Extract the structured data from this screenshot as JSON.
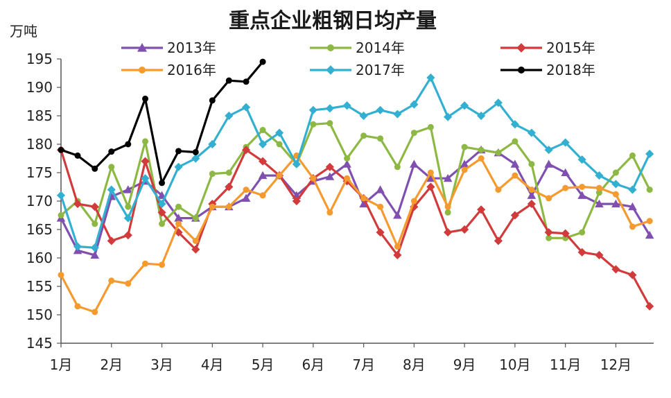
{
  "chart_data": {
    "type": "line",
    "title": "重点企业粗钢日均产量",
    "ylabel": "万吨",
    "xlabel": "",
    "ylim": [
      145,
      195
    ],
    "yticks": [
      145,
      150,
      155,
      160,
      165,
      170,
      175,
      180,
      185,
      190,
      195
    ],
    "x_range": [
      0,
      11.75
    ],
    "xticks": [
      {
        "label": "1月",
        "x": 0
      },
      {
        "label": "2月",
        "x": 1
      },
      {
        "label": "3月",
        "x": 2
      },
      {
        "label": "4月",
        "x": 3
      },
      {
        "label": "5月",
        "x": 4
      },
      {
        "label": "6月",
        "x": 5
      },
      {
        "label": "7月",
        "x": 6
      },
      {
        "label": "8月",
        "x": 7
      },
      {
        "label": "9月",
        "x": 8
      },
      {
        "label": "10月",
        "x": 9
      },
      {
        "label": "11月",
        "x": 10
      },
      {
        "label": "12月",
        "x": 11
      }
    ],
    "grid": false,
    "legend": "top",
    "series": [
      {
        "name": "2013年",
        "color": "#7f50b0",
        "marker": "triangle",
        "x": [
          0,
          0.33,
          0.67,
          1,
          1.33,
          1.67,
          2,
          2.33,
          2.67,
          3,
          3.33,
          3.67,
          4,
          4.33,
          4.67,
          5,
          5.33,
          5.67,
          6,
          6.33,
          6.67,
          7,
          7.33,
          7.67,
          8,
          8.33,
          8.67,
          9,
          9.33,
          9.67,
          10,
          10.33,
          10.67,
          11,
          11.33,
          11.67
        ],
        "values": [
          167,
          161.3,
          160.5,
          170.8,
          172,
          173.5,
          171,
          167,
          167,
          169,
          169,
          170.5,
          174.5,
          174.5,
          171,
          173.5,
          174.3,
          176.5,
          169.5,
          172,
          167.5,
          176.5,
          174,
          174,
          176.5,
          179,
          178.5,
          176.5,
          171,
          176.5,
          175,
          171,
          169.5,
          169.5,
          169,
          164
        ]
      },
      {
        "name": "2014年",
        "color": "#8db843",
        "marker": "circle",
        "x": [
          0,
          0.33,
          0.67,
          1,
          1.33,
          1.67,
          2,
          2.33,
          2.67,
          3,
          3.33,
          3.67,
          4,
          4.33,
          4.67,
          5,
          5.33,
          5.67,
          6,
          6.33,
          6.67,
          7,
          7.33,
          7.67,
          8,
          8.33,
          8.67,
          9,
          9.33,
          9.67,
          10,
          10.33,
          10.67,
          11,
          11.33,
          11.67
        ],
        "values": [
          167.5,
          170,
          166,
          176,
          169,
          180.5,
          166,
          169,
          167,
          174.8,
          175,
          179.5,
          182.5,
          180,
          176.5,
          183.5,
          183.7,
          177.5,
          181.5,
          181,
          176,
          182,
          183,
          168,
          179.5,
          179,
          178.5,
          180.5,
          176.5,
          163.5,
          163.5,
          164.5,
          171.5,
          175,
          178,
          172
        ]
      },
      {
        "name": "2015年",
        "color": "#d13b3b",
        "marker": "diamond",
        "x": [
          0,
          0.33,
          0.67,
          1,
          1.33,
          1.67,
          2,
          2.33,
          2.67,
          3,
          3.33,
          3.67,
          4,
          4.33,
          4.67,
          5,
          5.33,
          5.67,
          6,
          6.33,
          6.67,
          7,
          7.33,
          7.67,
          8,
          8.33,
          8.67,
          9,
          9.33,
          9.67,
          10,
          10.33,
          10.67,
          11,
          11.33,
          11.67
        ],
        "values": [
          179,
          169.5,
          169,
          163,
          164,
          177,
          168,
          164.5,
          161.5,
          169.5,
          172.5,
          179,
          177,
          174.5,
          170,
          174,
          176,
          173.5,
          170.5,
          164.5,
          160.5,
          169,
          172.5,
          164.5,
          165,
          168.5,
          163,
          167.5,
          169.5,
          164.5,
          164.3,
          161,
          160.5,
          158,
          157,
          151.5
        ]
      },
      {
        "name": "2016年",
        "color": "#f59a2e",
        "marker": "circle",
        "x": [
          0,
          0.33,
          0.67,
          1,
          1.33,
          1.67,
          2,
          2.33,
          2.67,
          3,
          3.33,
          3.67,
          4,
          4.33,
          4.67,
          5,
          5.33,
          5.67,
          6,
          6.33,
          6.67,
          7,
          7.33,
          7.67,
          8,
          8.33,
          8.67,
          9,
          9.33,
          9.67,
          10,
          10.33,
          10.67,
          11,
          11.33,
          11.67
        ],
        "values": [
          157,
          151.5,
          150.5,
          156,
          155.5,
          159,
          158.8,
          166,
          163,
          169,
          169,
          172,
          171,
          174.5,
          178,
          174,
          168,
          174,
          170.5,
          169,
          162,
          170,
          175,
          169,
          175.5,
          177.5,
          172,
          174.5,
          172,
          170.5,
          172.3,
          172.5,
          172.3,
          171.2,
          165.5,
          166.5
        ]
      },
      {
        "name": "2017年",
        "color": "#33b0d1",
        "marker": "diamond",
        "x": [
          0,
          0.33,
          0.67,
          1,
          1.33,
          1.67,
          2,
          2.33,
          2.67,
          3,
          3.33,
          3.67,
          4,
          4.33,
          4.67,
          5,
          5.33,
          5.67,
          6,
          6.33,
          6.67,
          7,
          7.33,
          7.67,
          8,
          8.33,
          8.67,
          9,
          9.33,
          9.67,
          10,
          10.33,
          10.67,
          11,
          11.33,
          11.67
        ],
        "values": [
          171,
          162,
          161.8,
          172,
          167,
          174,
          169.5,
          176,
          177.5,
          180,
          185,
          186.5,
          180,
          182,
          176.5,
          186,
          186.3,
          186.8,
          185,
          186,
          185.3,
          187,
          191.7,
          184.8,
          186.8,
          185,
          187.3,
          183.5,
          182,
          179,
          180.3,
          177.3,
          174.5,
          173,
          172,
          178.3
        ]
      },
      {
        "name": "2018年",
        "color": "#000000",
        "marker": "circle",
        "x": [
          0,
          0.33,
          0.67,
          1,
          1.33,
          1.67,
          2,
          2.33,
          2.67,
          3,
          3.33,
          3.67,
          4
        ],
        "values": [
          179,
          178,
          175.7,
          178.7,
          180,
          188,
          173.2,
          178.8,
          178.6,
          187.7,
          191.2,
          191,
          194.5
        ]
      }
    ]
  }
}
